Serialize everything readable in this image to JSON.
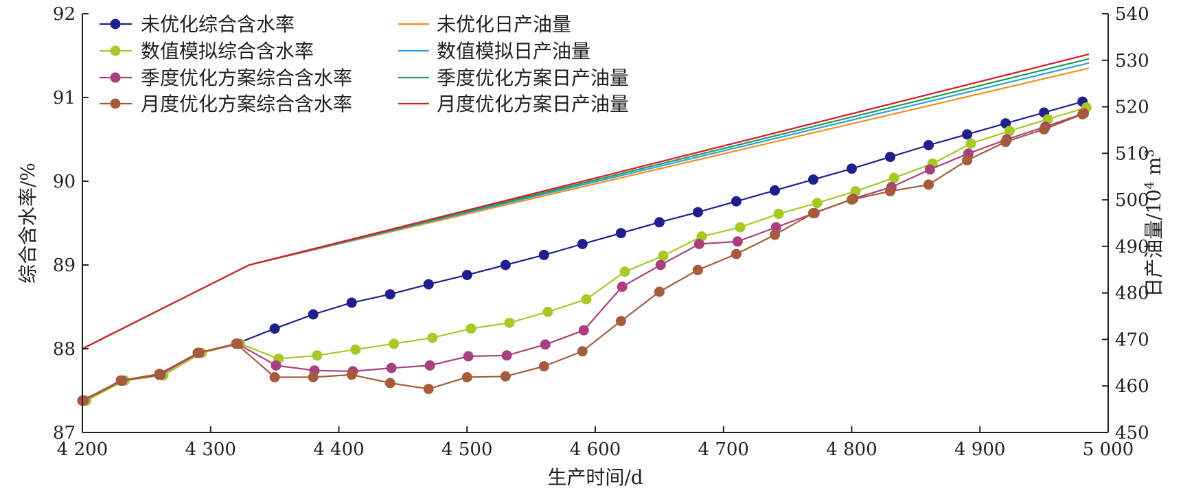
{
  "chart_data": {
    "type": "line",
    "xlabel": "生产时间/d",
    "ylabel_left": "综合含水率/%",
    "ylabel_right_main": "日产油量/10",
    "ylabel_right_sup1": "4",
    "ylabel_right_mid": " m",
    "ylabel_right_sup2": "3",
    "xlim": [
      4200,
      5000
    ],
    "ylim_left": [
      87,
      92
    ],
    "ylim_right": [
      450,
      540
    ],
    "x_ticks": [
      4200,
      4300,
      4400,
      4500,
      4600,
      4700,
      4800,
      4900,
      5000
    ],
    "x_tick_labels": [
      "4 200",
      "4 300",
      "4 400",
      "4 500",
      "4 600",
      "4 700",
      "4 800",
      "4 900",
      "5 000"
    ],
    "y_left_ticks": [
      87,
      88,
      89,
      90,
      91,
      92
    ],
    "y_left_tick_labels": [
      "87",
      "88",
      "89",
      "90",
      "91",
      "92"
    ],
    "y_right_ticks": [
      450,
      460,
      470,
      480,
      490,
      500,
      510,
      520,
      530,
      540
    ],
    "y_right_tick_labels": [
      "450",
      "460",
      "470",
      "480",
      "490",
      "500",
      "510",
      "520",
      "530",
      "540"
    ],
    "grid": false,
    "legend_position": "top-left",
    "water_cut_series": [
      {
        "name": "未优化综合含水率",
        "color": "#1f1f8c",
        "x": [
          4200,
          4230,
          4260,
          4290,
          4320,
          4350,
          4380,
          4410,
          4440,
          4470,
          4500,
          4530,
          4560,
          4590,
          4620,
          4650,
          4680,
          4710,
          4740,
          4770,
          4800,
          4830,
          4860,
          4890,
          4920,
          4950,
          4980
        ],
        "values": [
          87.38,
          87.62,
          87.69,
          87.95,
          88.06,
          88.24,
          88.41,
          88.55,
          88.65,
          88.77,
          88.88,
          89.0,
          89.12,
          89.25,
          89.38,
          89.51,
          89.63,
          89.76,
          89.89,
          90.02,
          90.15,
          90.29,
          90.43,
          90.56,
          90.69,
          90.82,
          90.95
        ]
      },
      {
        "name": "数值模拟综合含水率",
        "color": "#a6c926",
        "x": [
          4203,
          4233,
          4263,
          4293,
          4323,
          4353,
          4383,
          4413,
          4443,
          4473,
          4503,
          4533,
          4563,
          4593,
          4623,
          4653,
          4683,
          4713,
          4743,
          4773,
          4803,
          4833,
          4863,
          4893,
          4923,
          4953,
          4983
        ],
        "values": [
          87.38,
          87.62,
          87.68,
          87.95,
          88.06,
          87.88,
          87.92,
          87.99,
          88.06,
          88.13,
          88.24,
          88.31,
          88.44,
          88.59,
          88.92,
          89.11,
          89.34,
          89.45,
          89.61,
          89.74,
          89.88,
          90.04,
          90.21,
          90.45,
          90.6,
          90.74,
          90.88
        ]
      },
      {
        "name": "季度优化方案综合含水率",
        "color": "#a8407f",
        "x": [
          4201,
          4231,
          4261,
          4291,
          4321,
          4351,
          4381,
          4411,
          4441,
          4471,
          4501,
          4531,
          4561,
          4591,
          4621,
          4651,
          4681,
          4711,
          4741,
          4771,
          4801,
          4831,
          4861,
          4891,
          4921,
          4951,
          4981
        ],
        "values": [
          87.38,
          87.62,
          87.69,
          87.95,
          88.06,
          87.8,
          87.74,
          87.73,
          87.77,
          87.8,
          87.91,
          87.92,
          88.05,
          88.22,
          88.74,
          89.0,
          89.25,
          89.28,
          89.45,
          89.62,
          89.79,
          89.93,
          90.14,
          90.33,
          90.5,
          90.65,
          90.81
        ]
      },
      {
        "name": "月度优化方案综合含水率",
        "color": "#a65c3a",
        "x": [
          4200,
          4230,
          4260,
          4290,
          4320,
          4350,
          4380,
          4410,
          4440,
          4470,
          4500,
          4530,
          4560,
          4590,
          4620,
          4650,
          4680,
          4710,
          4740,
          4770,
          4800,
          4830,
          4860,
          4890,
          4920,
          4950,
          4980
        ],
        "values": [
          87.38,
          87.62,
          87.7,
          87.95,
          88.06,
          87.66,
          87.66,
          87.69,
          87.59,
          87.52,
          87.66,
          87.67,
          87.79,
          87.97,
          88.33,
          88.68,
          88.94,
          89.13,
          89.36,
          89.62,
          89.78,
          89.88,
          89.96,
          90.25,
          90.47,
          90.62,
          90.8
        ]
      }
    ],
    "oil_rate_series": [
      {
        "name": "未优化日产油量",
        "color": "#f39019",
        "x": [
          4200,
          4330,
          4985
        ],
        "values": [
          468,
          486,
          528.3
        ]
      },
      {
        "name": "数值模拟日产油量",
        "color": "#27a4da",
        "x": [
          4200,
          4330,
          4985
        ],
        "values": [
          468,
          486,
          529.4
        ]
      },
      {
        "name": "季度优化方案日产油量",
        "color": "#1f9a58",
        "x": [
          4200,
          4330,
          4985
        ],
        "values": [
          468,
          486,
          530.3
        ]
      },
      {
        "name": "月度优化方案日产油量",
        "color": "#d71f26",
        "x": [
          4200,
          4330,
          4985
        ],
        "values": [
          468,
          486,
          531.3
        ]
      }
    ],
    "legend_col1": [
      "未优化综合含水率",
      "数值模拟综合含水率",
      "季度优化方案综合含水率",
      "月度优化方案综合含水率"
    ],
    "legend_col2": [
      "未优化日产油量",
      "数值模拟日产油量",
      "季度优化方案日产油量",
      "月度优化方案日产油量"
    ]
  }
}
